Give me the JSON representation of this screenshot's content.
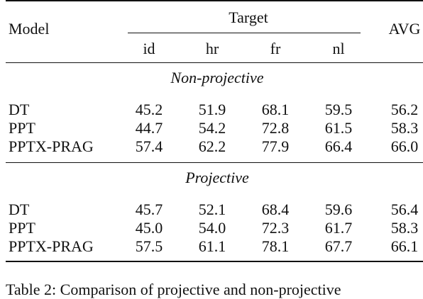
{
  "table": {
    "headers": {
      "model": "Model",
      "target": "Target",
      "avg": "AVG",
      "languages": [
        "id",
        "hr",
        "fr",
        "nl"
      ]
    },
    "sections": [
      {
        "title": "Non-projective",
        "rows": [
          {
            "model": "DT",
            "values": [
              "45.2",
              "51.9",
              "68.1",
              "59.5"
            ],
            "avg": "56.2"
          },
          {
            "model": "PPT",
            "values": [
              "44.7",
              "54.2",
              "72.8",
              "61.5"
            ],
            "avg": "58.3"
          },
          {
            "model": "PPTX-PRAG",
            "values": [
              "57.4",
              "62.2",
              "77.9",
              "66.4"
            ],
            "avg": "66.0"
          }
        ]
      },
      {
        "title": "Projective",
        "rows": [
          {
            "model": "DT",
            "values": [
              "45.7",
              "52.1",
              "68.4",
              "59.6"
            ],
            "avg": "56.4"
          },
          {
            "model": "PPT",
            "values": [
              "45.0",
              "54.0",
              "72.3",
              "61.7"
            ],
            "avg": "58.3"
          },
          {
            "model": "PPTX-PRAG",
            "values": [
              "57.5",
              "61.1",
              "78.1",
              "67.7"
            ],
            "avg": "66.1"
          }
        ]
      }
    ]
  },
  "caption": "Table 2: Comparison of projective and non-projective"
}
